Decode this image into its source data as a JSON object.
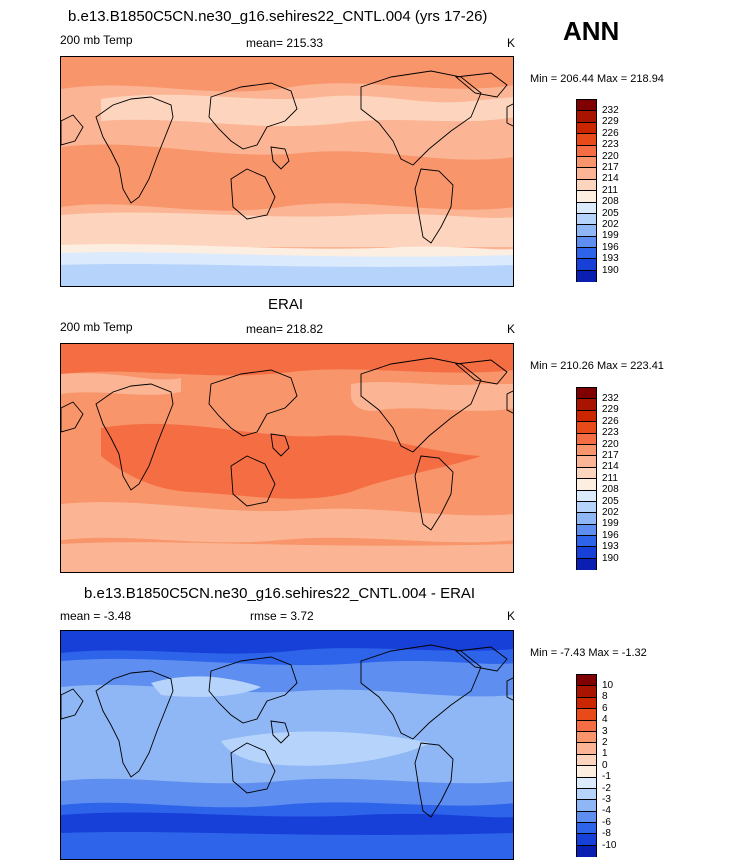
{
  "season": "ANN",
  "panels": [
    {
      "title": "b.e13.B1850C5CN.ne30_g16.sehires22_CNTL.004 (yrs 17-26)",
      "left_label": "200 mb Temp",
      "center_label": "mean= 215.33",
      "units": "K",
      "minmax": "Min = 206.44 Max = 218.94",
      "palette": "abs"
    },
    {
      "title": "ERAI",
      "left_label": "200 mb Temp",
      "center_label": "mean= 218.82",
      "units": "K",
      "minmax": "Min = 210.26 Max = 223.41",
      "palette": "abs"
    },
    {
      "title": "b.e13.B1850C5CN.ne30_g16.sehires22_CNTL.004 - ERAI",
      "left_label": "mean =  -3.48",
      "center_label": "rmse =   3.72",
      "units": "K",
      "minmax": "Min =  -7.43 Max =  -1.32",
      "palette": "diff"
    }
  ],
  "colorbars": {
    "abs": {
      "labels": [
        "232",
        "229",
        "226",
        "223",
        "220",
        "217",
        "214",
        "211",
        "208",
        "205",
        "202",
        "199",
        "196",
        "193",
        "190"
      ],
      "colors": [
        "#7f0000",
        "#a81400",
        "#cc2600",
        "#e84a1a",
        "#f46d43",
        "#f8956a",
        "#fbb595",
        "#fdd5bf",
        "#fdeee2",
        "#dbeafc",
        "#b6d3fb",
        "#8fb6f5",
        "#5d8ef0",
        "#2e64ea",
        "#1740d8",
        "#0a1fb2"
      ]
    },
    "diff": {
      "labels": [
        "10",
        "8",
        "6",
        "4",
        "3",
        "2",
        "1",
        "0",
        "-1",
        "-2",
        "-3",
        "-4",
        "-6",
        "-8",
        "-10"
      ],
      "colors": [
        "#7f0000",
        "#a81400",
        "#cc2600",
        "#e84a1a",
        "#f46d43",
        "#f8956a",
        "#fbb595",
        "#fdd5bf",
        "#fdeee2",
        "#dbeafc",
        "#b6d3fb",
        "#8fb6f5",
        "#5d8ef0",
        "#2e64ea",
        "#1740d8",
        "#0a1fb2"
      ]
    }
  }
}
